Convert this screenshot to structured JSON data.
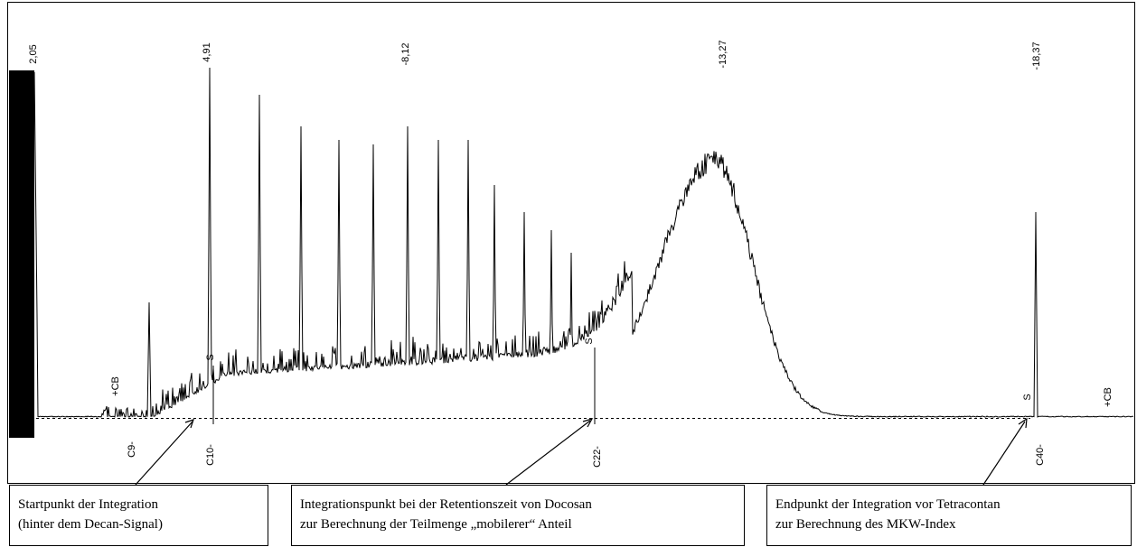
{
  "retention_labels": [
    "2,05",
    "4,91",
    "-8,12",
    "-13,27",
    "-18,37"
  ],
  "compound_labels": [
    "C9-",
    "C10-",
    "C22-",
    "C40-"
  ],
  "cb_labels": [
    "+CB",
    "+CB"
  ],
  "integration_marks": [
    "S",
    "S",
    "S"
  ],
  "annotations": [
    {
      "lines": [
        "Startpunkt der  Integration",
        "(hinter dem Decan-Signal)"
      ]
    },
    {
      "lines": [
        "Integrationspunkt bei der Retentionszeit von Docosan",
        "zur Berechnung der Teilmenge „mobilerer“ Anteil"
      ]
    },
    {
      "lines": [
        "Endpunkt der Integration vor Tetracontan",
        "zur Berechnung des MKW-Index"
      ]
    }
  ]
}
